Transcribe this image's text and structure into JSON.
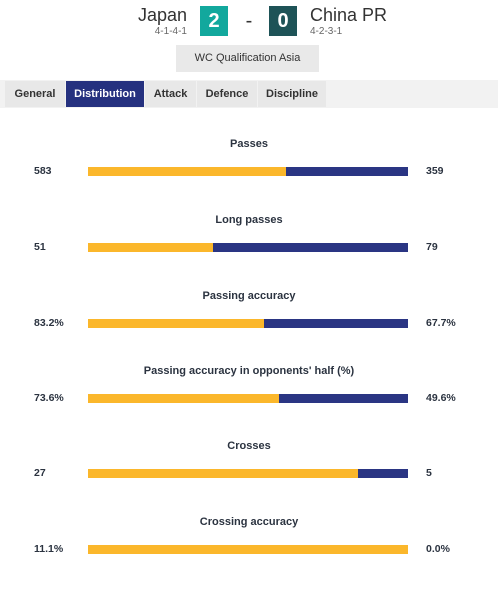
{
  "match": {
    "home": {
      "name": "Japan",
      "formation": "4-1-4-1",
      "score": "2"
    },
    "away": {
      "name": "China PR",
      "formation": "4-2-3-1",
      "score": "0"
    },
    "separator": "-",
    "competition": "WC Qualification Asia"
  },
  "tabs": [
    {
      "label": "General",
      "active": false
    },
    {
      "label": "Distribution",
      "active": true
    },
    {
      "label": "Attack",
      "active": false
    },
    {
      "label": "Defence",
      "active": false
    },
    {
      "label": "Discipline",
      "active": false
    }
  ],
  "colors": {
    "home_bar": "#fbb72b",
    "away_bar": "#2a3583",
    "active_tab": "#25317f"
  },
  "stats": [
    {
      "title": "Passes",
      "home": "583",
      "away": "359",
      "home_share": 0.619
    },
    {
      "title": "Long passes",
      "home": "51",
      "away": "79",
      "home_share": 0.392
    },
    {
      "title": "Passing accuracy",
      "home": "83.2%",
      "away": "67.7%",
      "home_share": 0.551
    },
    {
      "title": "Passing accuracy in opponents' half (%)",
      "home": "73.6%",
      "away": "49.6%",
      "home_share": 0.597
    },
    {
      "title": "Crosses",
      "home": "27",
      "away": "5",
      "home_share": 0.844
    },
    {
      "title": "Crossing accuracy",
      "home": "11.1%",
      "away": "0.0%",
      "home_share": 1.0
    }
  ]
}
